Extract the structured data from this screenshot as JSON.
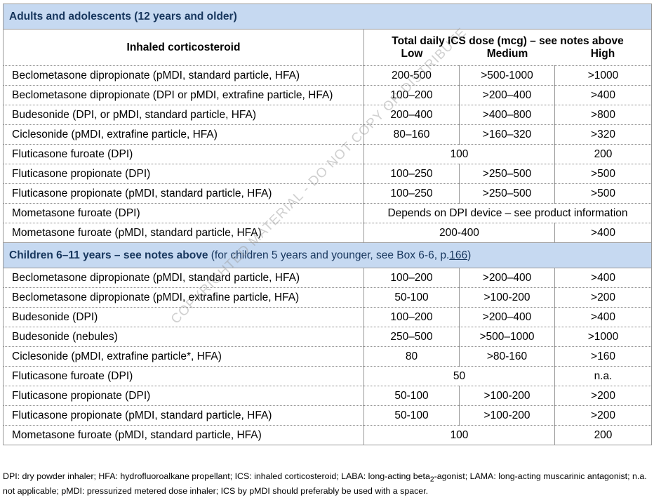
{
  "watermark": "COPYRIGHTED MATERIAL - DO NOT COPY OR DISTRIBUTE",
  "table": {
    "column_headers": {
      "drug": "Inhaled corticosteroid",
      "dose": "Total daily ICS dose (mcg) – see notes above",
      "levels": [
        "Low",
        "Medium",
        "High"
      ]
    },
    "sections": [
      {
        "title_bold": "Adults and adolescents (12 years and older)",
        "rows": [
          {
            "drug": "Beclometasone dipropionate (pMDI, standard particle, HFA)",
            "doses": [
              "200-500",
              ">500-1000",
              ">1000"
            ]
          },
          {
            "drug": "Beclometasone dipropionate (DPI or pMDI, extrafine particle, HFA)",
            "doses": [
              "100–200",
              ">200–400",
              ">400"
            ]
          },
          {
            "drug": "Budesonide (DPI, or pMDI, standard particle, HFA)",
            "doses": [
              "200–400",
              ">400–800",
              ">800"
            ]
          },
          {
            "drug": "Ciclesonide (pMDI, extrafine particle, HFA)",
            "doses": [
              "80–160",
              ">160–320",
              ">320"
            ]
          },
          {
            "drug": "Fluticasone furoate (DPI)",
            "doses": [
              "100",
              "200"
            ]
          },
          {
            "drug": "Fluticasone propionate (DPI)",
            "doses": [
              "100–250",
              ">250–500",
              ">500"
            ]
          },
          {
            "drug": "Fluticasone propionate (pMDI, standard particle, HFA)",
            "doses": [
              "100–250",
              ">250–500",
              ">500"
            ]
          },
          {
            "drug": "Mometasone furoate (DPI)",
            "doses": [
              "Depends on DPI device – see product information"
            ]
          },
          {
            "drug": "Mometasone furoate (pMDI, standard particle, HFA)",
            "doses": [
              "200-400",
              ">400"
            ]
          }
        ]
      },
      {
        "title_bold": "Children 6–11 years – see notes above",
        "title_note_before": " (for children 5 years and younger, see Box 6-6, p.",
        "title_link": "166",
        "title_note_after": ")",
        "rows": [
          {
            "drug": "Beclometasone dipropionate (pMDI, standard particle, HFA)",
            "doses": [
              "100–200",
              ">200–400",
              ">400"
            ]
          },
          {
            "drug": "Beclometasone dipropionate (pMDI, extrafine particle, HFA)",
            "doses": [
              "50-100",
              ">100-200",
              ">200"
            ]
          },
          {
            "drug": "Budesonide (DPI)",
            "doses": [
              "100–200",
              ">200–400",
              ">400"
            ]
          },
          {
            "drug": "Budesonide (nebules)",
            "doses": [
              "250–500",
              ">500–1000",
              ">1000"
            ]
          },
          {
            "drug": "Ciclesonide (pMDI, extrafine particle*, HFA)",
            "doses": [
              "80",
              ">80-160",
              ">160"
            ]
          },
          {
            "drug": "Fluticasone furoate (DPI)",
            "doses": [
              "50",
              "n.a."
            ]
          },
          {
            "drug": "Fluticasone propionate (DPI)",
            "doses": [
              "50-100",
              ">100-200",
              ">200"
            ]
          },
          {
            "drug": "Fluticasone propionate (pMDI, standard particle, HFA)",
            "doses": [
              "50-100",
              ">100-200",
              ">200"
            ]
          },
          {
            "drug": "Mometasone furoate (pMDI, standard particle, HFA)",
            "doses": [
              "100",
              "200"
            ]
          }
        ]
      }
    ]
  },
  "footnote": {
    "before": "DPI: dry powder inhaler; HFA: hydrofluoroalkane propellant; ICS: inhaled corticosteroid; LABA: long-acting beta",
    "sub": "2",
    "after": "-agonist; LAMA: long-acting muscarinic antagonist; n.a. not applicable; pMDI: pressurized metered dose inhaler; ICS by pMDI should preferably be used with a spacer."
  }
}
